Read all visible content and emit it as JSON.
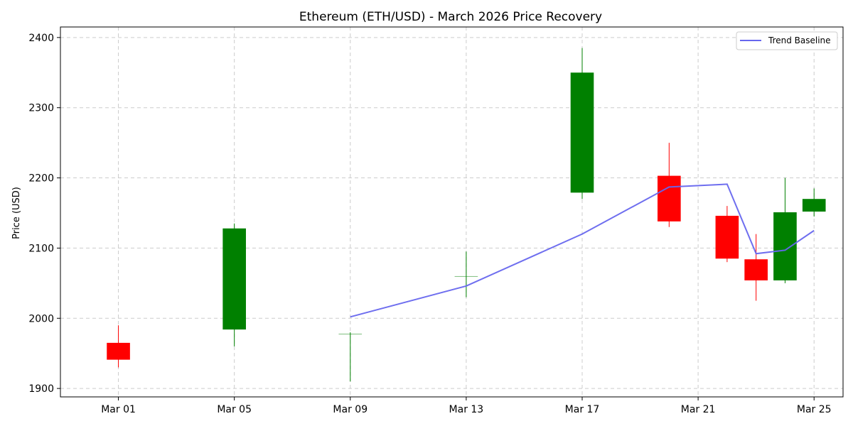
{
  "chart_data": {
    "type": "candlestick",
    "title": "Ethereum (ETH/USD) - March 2026 Price Recovery",
    "xlabel": "",
    "ylabel": "Price (USD)",
    "ylim": [
      1888,
      2415
    ],
    "xlim": [
      "2026-02-27",
      "2026-03-26"
    ],
    "grid": true,
    "grid_style": "dashed",
    "legend_position": "top-right",
    "x_ticks": [
      {
        "date": "2026-03-01",
        "label": "Mar 01"
      },
      {
        "date": "2026-03-05",
        "label": "Mar 05"
      },
      {
        "date": "2026-03-09",
        "label": "Mar 09"
      },
      {
        "date": "2026-03-13",
        "label": "Mar 13"
      },
      {
        "date": "2026-03-17",
        "label": "Mar 17"
      },
      {
        "date": "2026-03-21",
        "label": "Mar 21"
      },
      {
        "date": "2026-03-25",
        "label": "Mar 25"
      }
    ],
    "y_ticks": [
      1900,
      2000,
      2100,
      2200,
      2300,
      2400
    ],
    "candles": [
      {
        "date": "2026-03-01",
        "open": 1965,
        "high": 1990,
        "low": 1930,
        "close": 1941
      },
      {
        "date": "2026-03-05",
        "open": 1984,
        "high": 2135,
        "low": 1960,
        "close": 2128
      },
      {
        "date": "2026-03-09",
        "open": 1978,
        "high": 1980,
        "low": 1910,
        "close": 1978
      },
      {
        "date": "2026-03-13",
        "open": 2060,
        "high": 2095,
        "low": 2030,
        "close": 2060
      },
      {
        "date": "2026-03-17",
        "open": 2179,
        "high": 2385,
        "low": 2170,
        "close": 2350
      },
      {
        "date": "2026-03-20",
        "open": 2203,
        "high": 2250,
        "low": 2130,
        "close": 2138
      },
      {
        "date": "2026-03-22",
        "open": 2146,
        "high": 2160,
        "low": 2080,
        "close": 2085
      },
      {
        "date": "2026-03-23",
        "open": 2084,
        "high": 2120,
        "low": 2025,
        "close": 2054
      },
      {
        "date": "2026-03-24",
        "open": 2054,
        "high": 2200,
        "low": 2050,
        "close": 2151
      },
      {
        "date": "2026-03-25",
        "open": 2152,
        "high": 2185,
        "low": 2145,
        "close": 2170
      }
    ],
    "series": [
      {
        "name": "Trend Baseline",
        "type": "line",
        "color": "#6666ee",
        "points": [
          {
            "date": "2026-03-09",
            "value": 2002
          },
          {
            "date": "2026-03-13",
            "value": 2046
          },
          {
            "date": "2026-03-17",
            "value": 2120
          },
          {
            "date": "2026-03-20",
            "value": 2187
          },
          {
            "date": "2026-03-22",
            "value": 2191
          },
          {
            "date": "2026-03-23",
            "value": 2092
          },
          {
            "date": "2026-03-24",
            "value": 2097
          },
          {
            "date": "2026-03-25",
            "value": 2125
          }
        ]
      }
    ],
    "colors": {
      "up": "#008000",
      "down": "#ff0000",
      "grid": "#cccccc"
    }
  }
}
